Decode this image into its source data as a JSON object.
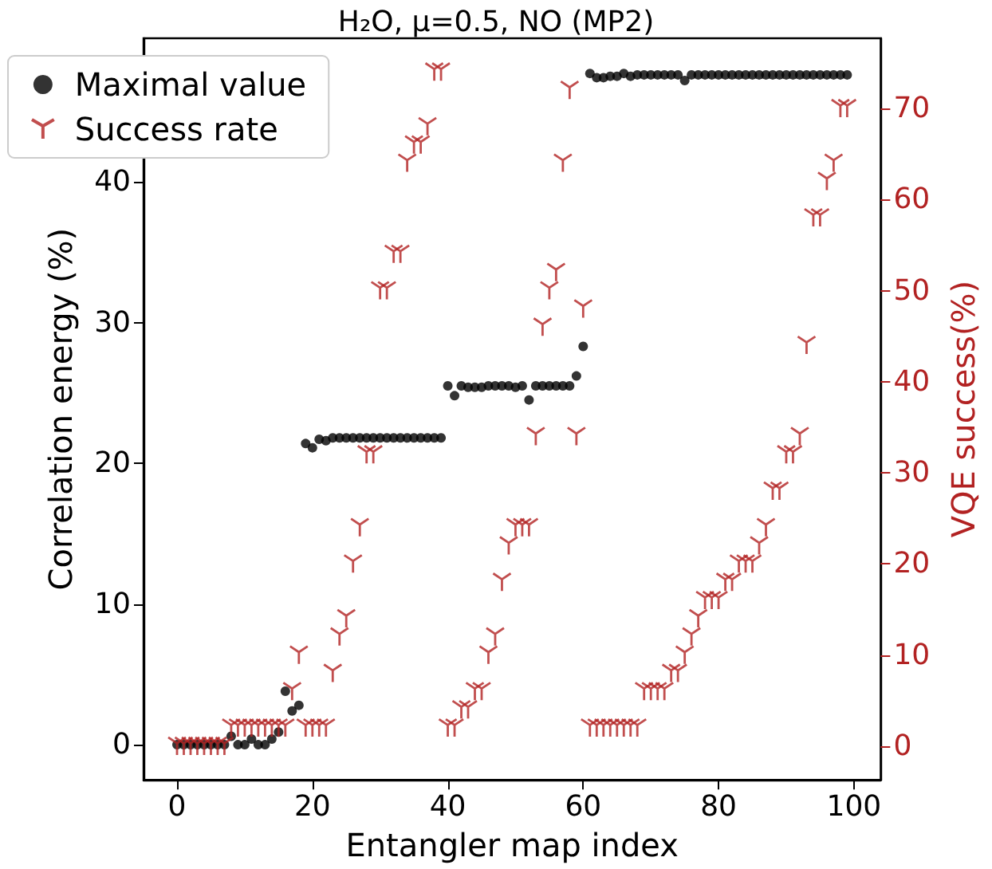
{
  "chart_data": {
    "type": "scatter",
    "title": "H₂O, μ=0.5, NO (MP2)",
    "xlabel": "Entangler map index",
    "ylabel": "Correlation energy (%)",
    "y2label": "VQE success(%)",
    "x": [
      0,
      1,
      2,
      3,
      4,
      5,
      6,
      7,
      8,
      9,
      10,
      11,
      12,
      13,
      14,
      15,
      16,
      17,
      18,
      19,
      20,
      21,
      22,
      23,
      24,
      25,
      26,
      27,
      28,
      29,
      30,
      31,
      32,
      33,
      34,
      35,
      36,
      37,
      38,
      39,
      40,
      41,
      42,
      43,
      44,
      45,
      46,
      47,
      48,
      49,
      50,
      51,
      52,
      53,
      54,
      55,
      56,
      57,
      58,
      59,
      60,
      61,
      62,
      63,
      64,
      65,
      66,
      67,
      68,
      69,
      70,
      71,
      72,
      73,
      74,
      75,
      76,
      77,
      78,
      79,
      80,
      81,
      82,
      83,
      84,
      85,
      86,
      87,
      88,
      89,
      90,
      91,
      92,
      93,
      94,
      95,
      96,
      97,
      98,
      99
    ],
    "series": [
      {
        "name": "Maximal value",
        "color": "#000000",
        "marker": "circle",
        "values": [
          0,
          0,
          0,
          0,
          0,
          0,
          0,
          0,
          0.6,
          0.0,
          0.0,
          0.4,
          0.0,
          0.0,
          0.4,
          0.9,
          3.8,
          2.4,
          2.8,
          21.4,
          21.1,
          21.7,
          21.6,
          21.8,
          21.8,
          21.8,
          21.8,
          21.8,
          21.8,
          21.8,
          21.8,
          21.8,
          21.8,
          21.8,
          21.8,
          21.8,
          21.8,
          21.8,
          21.8,
          21.8,
          25.5,
          24.8,
          25.5,
          25.4,
          25.4,
          25.4,
          25.5,
          25.5,
          25.5,
          25.5,
          25.4,
          25.5,
          24.5,
          25.5,
          25.5,
          25.5,
          25.5,
          25.5,
          25.5,
          26.2,
          28.3,
          47.7,
          47.4,
          47.4,
          47.5,
          47.5,
          47.7,
          47.5,
          47.6,
          47.6,
          47.6,
          47.6,
          47.6,
          47.6,
          47.6,
          47.2,
          47.6,
          47.6,
          47.6,
          47.6,
          47.6,
          47.6,
          47.6,
          47.6,
          47.6,
          47.6,
          47.6,
          47.6,
          47.6,
          47.6,
          47.6,
          47.6,
          47.6,
          47.6,
          47.6,
          47.6,
          47.6,
          47.6,
          47.6,
          47.6
        ]
      },
      {
        "name": "Success rate",
        "color": "#b22222",
        "marker": "cross",
        "axis": "y2",
        "values": [
          0,
          0,
          0,
          0,
          0,
          0,
          0,
          0,
          2,
          2,
          2,
          2,
          2,
          2,
          2,
          2,
          2,
          6,
          10,
          2,
          2,
          2,
          2,
          8,
          12,
          14,
          20,
          24,
          32,
          32,
          50,
          50,
          54,
          54,
          64,
          66,
          66,
          68,
          74,
          74,
          2,
          2,
          4,
          4,
          6,
          6,
          10,
          12,
          18,
          22,
          24,
          24,
          24,
          34,
          46,
          50,
          52,
          64,
          72,
          34,
          48,
          2,
          2,
          2,
          2,
          2,
          2,
          2,
          2,
          6,
          6,
          6,
          6,
          8,
          8,
          10,
          12,
          14,
          16,
          16,
          16,
          18,
          18,
          20,
          20,
          20,
          22,
          24,
          28,
          28,
          32,
          32,
          34,
          44,
          58,
          58,
          62,
          64,
          70,
          70
        ]
      }
    ],
    "xlim": [
      -4.95,
      103.95
    ],
    "xticks": [
      0,
      20,
      40,
      60,
      80,
      100
    ],
    "ylim": [
      -2.5,
      50.2
    ],
    "yticks": [
      0,
      10,
      20,
      30,
      40
    ],
    "y2lim": [
      -3.7,
      77.7
    ],
    "y2ticks": [
      0,
      10,
      20,
      30,
      40,
      50,
      60,
      70
    ],
    "legend": "top left",
    "grid": false
  }
}
